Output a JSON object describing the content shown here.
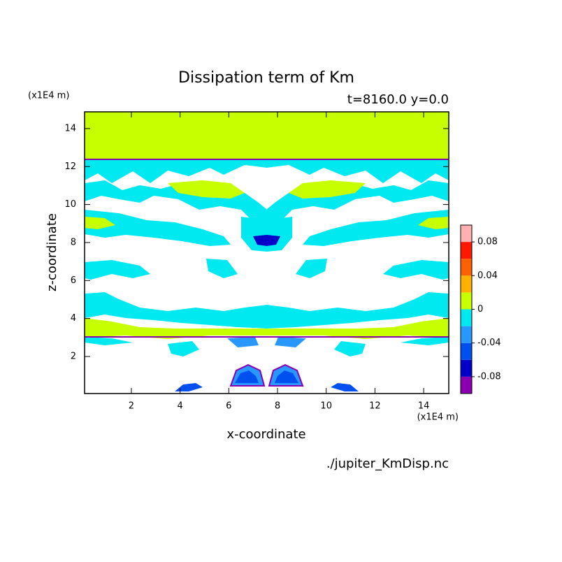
{
  "chart_data": {
    "type": "contour",
    "title": "Dissipation term of Km",
    "subtitle": "t=8160.0 y=0.0",
    "y_unit": "(x1E4 m)",
    "x_unit": "(x1E4 m)",
    "x_label": "x-coordinate",
    "y_label": "z-coordinate",
    "source": "./jupiter_KmDisp.nc",
    "xlim": [
      0.08,
      15.03
    ],
    "xticks": [
      2,
      4,
      6,
      8,
      10,
      12,
      14
    ],
    "ylim": [
      0.05,
      14.88
    ],
    "yticks": [
      2,
      4,
      6,
      8,
      10,
      12,
      14
    ],
    "clim": [
      -0.1,
      0.1
    ],
    "cticks": [
      0.08,
      0.04,
      0,
      -0.04,
      -0.08
    ],
    "colors": [
      "#8a00b0",
      "#0000c8",
      "#0050f0",
      "#2898ff",
      "#00e8f0",
      "#c8ff00",
      "#ffb000",
      "#ff6000",
      "#ff1800",
      "#ffb0b0"
    ]
  }
}
